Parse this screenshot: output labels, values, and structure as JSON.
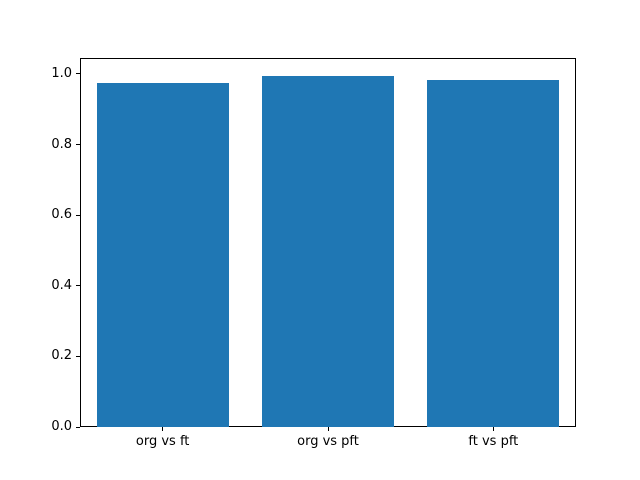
{
  "chart_data": {
    "type": "bar",
    "categories": [
      "org vs ft",
      "org vs pft",
      "ft vs pft"
    ],
    "values": [
      0.975,
      0.995,
      0.982
    ],
    "yticks": [
      0.0,
      0.2,
      0.4,
      0.6,
      0.8,
      1.0
    ],
    "ylim": [
      0,
      1.045
    ],
    "bar_color": "#1f77b4",
    "grid": false,
    "legend": null
  }
}
